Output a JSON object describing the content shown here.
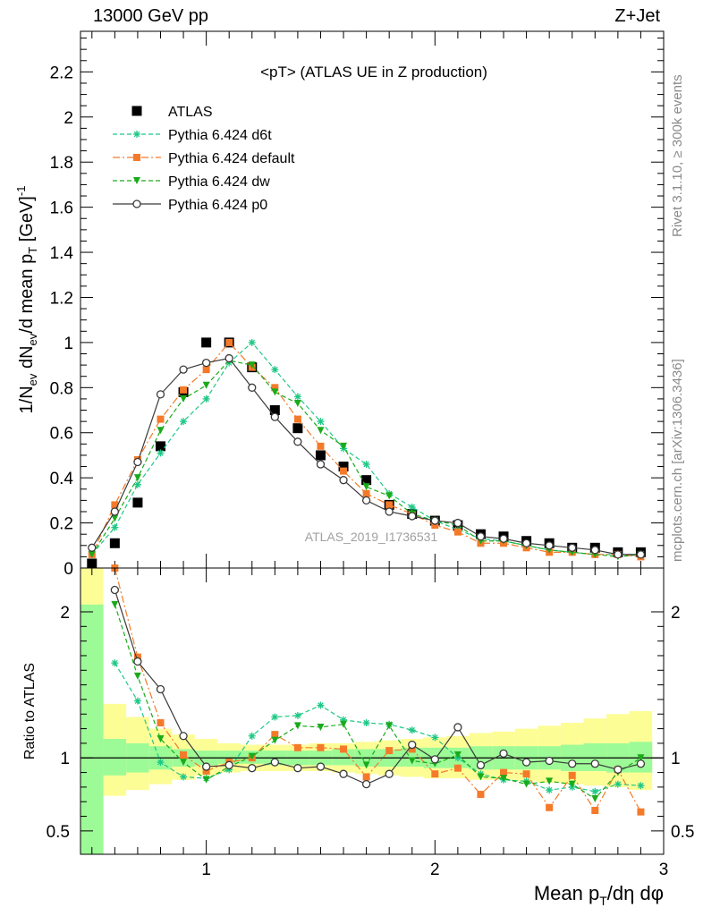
{
  "header": {
    "left": "13000 GeV pp",
    "right": "Z+Jet"
  },
  "side_notes": {
    "rivet": "Rivet 3.1.10, ≥ 300k events",
    "mcplots": "mcplots.cern.ch [arXiv:1306.3436]"
  },
  "colors": {
    "atlas": "#000000",
    "d6t": "#1ec886",
    "default": "#f47a2a",
    "dw": "#1aab1a",
    "p0": "#3a3a3a",
    "band_inner": "#9cfb96",
    "band_outer": "#fdfd96"
  },
  "chart_data": [
    {
      "type": "scatter",
      "title": "<pT> (ATLAS UE in Z production)",
      "analysis_label": "ATLAS_2019_I1736531",
      "ylabel": "1/N_ev dN_ev/d mean p_T [GeV]^-1",
      "xlabel": "Mean p_T/dη dφ",
      "xlim": [
        0.45,
        3.0
      ],
      "ylim": [
        0,
        2.38
      ],
      "y_ticks": [
        0,
        0.2,
        0.4,
        0.6,
        0.8,
        1,
        1.2,
        1.4,
        1.6,
        1.8,
        2,
        2.2
      ],
      "x": [
        0.5,
        0.6,
        0.7,
        0.8,
        0.9,
        1.0,
        1.1,
        1.2,
        1.3,
        1.4,
        1.5,
        1.6,
        1.7,
        1.8,
        1.9,
        2.0,
        2.1,
        2.2,
        2.3,
        2.4,
        2.5,
        2.6,
        2.7,
        2.8,
        2.9
      ],
      "series": [
        {
          "name": "ATLAS",
          "key": "atlas",
          "marker": "square",
          "values": [
            0.02,
            0.11,
            0.29,
            0.54,
            0.78,
            1.0,
            1.0,
            0.89,
            0.7,
            0.62,
            0.5,
            0.45,
            0.39,
            0.28,
            0.24,
            0.21,
            0.19,
            0.15,
            0.14,
            0.12,
            0.11,
            0.09,
            0.09,
            0.07,
            0.07
          ]
        },
        {
          "name": "Pythia 6.424 d6t",
          "key": "d6t",
          "marker": "star",
          "dash": "5,3",
          "values": [
            0.06,
            0.18,
            0.37,
            0.51,
            0.65,
            0.75,
            0.91,
            1.0,
            0.88,
            0.76,
            0.65,
            0.53,
            0.46,
            0.33,
            0.27,
            0.21,
            0.17,
            0.13,
            0.12,
            0.1,
            0.08,
            0.07,
            0.06,
            0.06,
            0.06
          ]
        },
        {
          "name": "Pythia 6.424 default",
          "key": "default",
          "marker": "square",
          "dash": "8,3,2,3",
          "values": [
            0.06,
            0.28,
            0.48,
            0.66,
            0.79,
            0.88,
            1.0,
            0.89,
            0.8,
            0.66,
            0.54,
            0.43,
            0.33,
            0.28,
            0.24,
            0.19,
            0.16,
            0.11,
            0.11,
            0.09,
            0.07,
            0.07,
            0.06,
            0.06,
            0.05
          ]
        },
        {
          "name": "Pythia 6.424 dw",
          "key": "dw",
          "marker": "triangle-down",
          "dash": "5,3",
          "values": [
            0.06,
            0.22,
            0.4,
            0.61,
            0.75,
            0.81,
            0.92,
            0.9,
            0.78,
            0.73,
            0.61,
            0.54,
            0.36,
            0.32,
            0.24,
            0.21,
            0.19,
            0.12,
            0.12,
            0.1,
            0.08,
            0.07,
            0.06,
            0.05,
            0.06
          ]
        },
        {
          "name": "Pythia 6.424 p0",
          "key": "p0",
          "marker": "circle-open",
          "dash": "",
          "values": [
            0.09,
            0.25,
            0.47,
            0.77,
            0.88,
            0.91,
            0.93,
            0.8,
            0.67,
            0.56,
            0.46,
            0.39,
            0.3,
            0.25,
            0.23,
            0.21,
            0.2,
            0.14,
            0.13,
            0.11,
            0.1,
            0.09,
            0.08,
            0.06,
            0.06
          ]
        }
      ]
    },
    {
      "type": "scatter",
      "ylabel": "Ratio to ATLAS",
      "xlabel": "Mean p_T/dη dφ",
      "xlim": [
        0.45,
        3.0
      ],
      "ylim": [
        0.34,
        2.3
      ],
      "y_ticks": [
        0.5,
        1,
        2
      ],
      "x_ticks": [
        1,
        2,
        3
      ],
      "x": [
        0.5,
        0.6,
        0.7,
        0.8,
        0.9,
        1.0,
        1.1,
        1.2,
        1.3,
        1.4,
        1.5,
        1.6,
        1.7,
        1.8,
        1.9,
        2.0,
        2.1,
        2.2,
        2.3,
        2.4,
        2.5,
        2.6,
        2.7,
        2.8,
        2.9
      ],
      "bins": [
        [
          0.45,
          0.55
        ],
        [
          0.55,
          0.65
        ],
        [
          0.65,
          0.75
        ],
        [
          0.75,
          0.85
        ],
        [
          0.85,
          0.95
        ],
        [
          0.95,
          1.05
        ],
        [
          1.05,
          1.15
        ],
        [
          1.15,
          1.25
        ],
        [
          1.25,
          1.35
        ],
        [
          1.35,
          1.45
        ],
        [
          1.45,
          1.55
        ],
        [
          1.55,
          1.65
        ],
        [
          1.65,
          1.75
        ],
        [
          1.75,
          1.85
        ],
        [
          1.85,
          1.95
        ],
        [
          1.95,
          2.05
        ],
        [
          2.05,
          2.15
        ],
        [
          2.15,
          2.25
        ],
        [
          2.25,
          2.35
        ],
        [
          2.35,
          2.45
        ],
        [
          2.45,
          2.55
        ],
        [
          2.55,
          2.65
        ],
        [
          2.65,
          2.75
        ],
        [
          2.75,
          2.85
        ],
        [
          2.85,
          2.95
        ]
      ],
      "band_inner": [
        [
          0.34,
          2.05
        ],
        [
          0.88,
          1.13
        ],
        [
          0.9,
          1.1
        ],
        [
          0.92,
          1.08
        ],
        [
          0.94,
          1.06
        ],
        [
          0.95,
          1.05
        ],
        [
          0.96,
          1.05
        ],
        [
          0.96,
          1.05
        ],
        [
          0.95,
          1.05
        ],
        [
          0.95,
          1.05
        ],
        [
          0.95,
          1.05
        ],
        [
          0.95,
          1.06
        ],
        [
          0.94,
          1.06
        ],
        [
          0.94,
          1.06
        ],
        [
          0.94,
          1.07
        ],
        [
          0.93,
          1.07
        ],
        [
          0.93,
          1.07
        ],
        [
          0.92,
          1.08
        ],
        [
          0.92,
          1.08
        ],
        [
          0.92,
          1.08
        ],
        [
          0.92,
          1.08
        ],
        [
          0.91,
          1.09
        ],
        [
          0.91,
          1.1
        ],
        [
          0.9,
          1.1
        ],
        [
          0.9,
          1.11
        ]
      ],
      "band_outer": [
        [
          0.34,
          2.3
        ],
        [
          0.74,
          1.37
        ],
        [
          0.78,
          1.28
        ],
        [
          0.82,
          1.2
        ],
        [
          0.85,
          1.16
        ],
        [
          0.88,
          1.13
        ],
        [
          0.9,
          1.1
        ],
        [
          0.91,
          1.09
        ],
        [
          0.91,
          1.09
        ],
        [
          0.91,
          1.09
        ],
        [
          0.91,
          1.1
        ],
        [
          0.9,
          1.1
        ],
        [
          0.89,
          1.11
        ],
        [
          0.88,
          1.12
        ],
        [
          0.87,
          1.13
        ],
        [
          0.86,
          1.14
        ],
        [
          0.86,
          1.15
        ],
        [
          0.85,
          1.17
        ],
        [
          0.85,
          1.18
        ],
        [
          0.84,
          1.2
        ],
        [
          0.83,
          1.22
        ],
        [
          0.82,
          1.24
        ],
        [
          0.81,
          1.27
        ],
        [
          0.8,
          1.3
        ],
        [
          0.78,
          1.32
        ]
      ],
      "series": [
        {
          "key": "d6t",
          "values": [
            null,
            1.65,
            1.39,
            0.97,
            0.87,
            0.86,
            0.92,
            1.15,
            1.28,
            1.29,
            1.36,
            1.26,
            1.24,
            1.23,
            1.19,
            1.14,
            1.0,
            0.89,
            0.85,
            0.84,
            0.78,
            0.8,
            0.77,
            0.82,
            0.81
          ]
        },
        {
          "key": "default",
          "values": [
            null,
            2.3,
            1.69,
            1.24,
            1.02,
            0.91,
            0.97,
            1.0,
            1.16,
            1.07,
            1.07,
            1.06,
            0.87,
            1.05,
            1.06,
            0.89,
            0.93,
            0.75,
            0.9,
            0.89,
            0.66,
            0.88,
            0.64,
            0.92,
            0.63
          ]
        },
        {
          "key": "dw",
          "values": [
            null,
            2.05,
            1.56,
            1.13,
            0.97,
            0.85,
            0.94,
            1.01,
            1.12,
            1.22,
            1.21,
            1.23,
            0.95,
            1.22,
            0.98,
            0.96,
            1.02,
            0.87,
            0.86,
            0.82,
            0.84,
            0.82,
            0.72,
            0.9,
            1.0
          ]
        },
        {
          "key": "p0",
          "values": [
            null,
            2.15,
            1.66,
            1.47,
            1.15,
            0.94,
            0.95,
            0.93,
            0.97,
            0.93,
            0.94,
            0.89,
            0.82,
            0.89,
            1.09,
            0.99,
            1.21,
            0.95,
            1.03,
            0.97,
            0.98,
            0.96,
            0.96,
            0.92,
            0.96
          ]
        }
      ]
    }
  ]
}
